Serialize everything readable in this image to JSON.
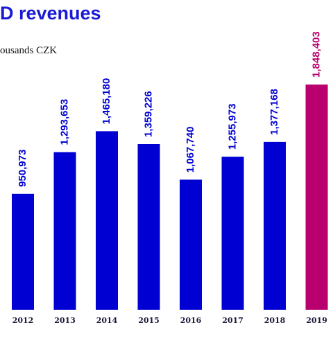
{
  "chart_data": {
    "type": "bar",
    "title": "D revenues",
    "subtitle": "ousands CZK",
    "categories": [
      "2012",
      "2013",
      "2014",
      "2015",
      "2016",
      "2017",
      "2018",
      "2019"
    ],
    "values": [
      950973,
      1293653,
      1465180,
      1359226,
      1067740,
      1255973,
      1377168,
      1848403
    ],
    "value_labels": [
      "950,973",
      "1,293,653",
      "1,465,180",
      "1,359,226",
      "1,067,740",
      "1,255,973",
      "1,377,168",
      "1,848,403"
    ],
    "colors": [
      "#0000d2",
      "#0000d2",
      "#0000d2",
      "#0000d2",
      "#0000d2",
      "#0000d2",
      "#0000d2",
      "#b8006e"
    ]
  }
}
